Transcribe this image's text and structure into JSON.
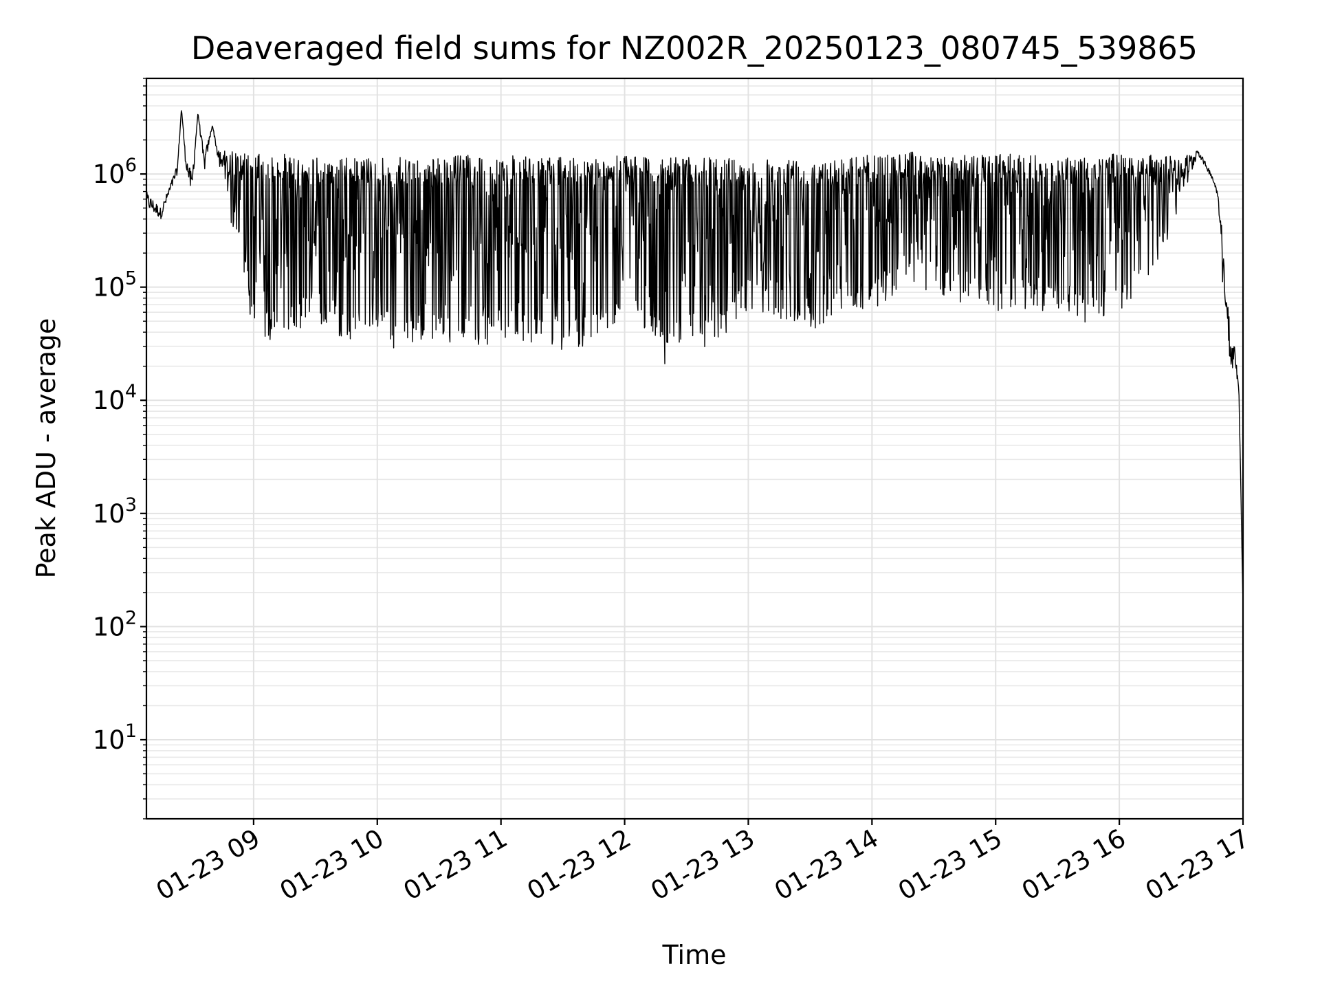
{
  "chart_data": {
    "type": "line",
    "title": "Deaveraged field sums for NZ002R_20250123_080745_539865",
    "xlabel": "Time",
    "ylabel": "Peak ADU - average",
    "y_scale": "log",
    "ylim": [
      2,
      7000000
    ],
    "xlim": [
      "2025-01-23 08:08",
      "2025-01-23 17:00"
    ],
    "grid": true,
    "legend": "none",
    "line_color": "#000000",
    "x_ticks": [
      "01-23 09",
      "01-23 10",
      "01-23 11",
      "01-23 12",
      "01-23 13",
      "01-23 14",
      "01-23 15",
      "01-23 16",
      "01-23 17"
    ],
    "y_ticks": [
      {
        "value": 10,
        "base": "10",
        "exp": "1"
      },
      {
        "value": 100,
        "base": "10",
        "exp": "2"
      },
      {
        "value": 1000,
        "base": "10",
        "exp": "3"
      },
      {
        "value": 10000,
        "base": "10",
        "exp": "4"
      },
      {
        "value": 100000,
        "base": "10",
        "exp": "5"
      },
      {
        "value": 1000000,
        "base": "10",
        "exp": "6"
      }
    ],
    "series": [
      {
        "x": [
          "2025-01-23 08:08",
          "2025-01-23 08:15",
          "2025-01-23 08:23",
          "2025-01-23 08:25",
          "2025-01-23 08:27",
          "2025-01-23 08:30",
          "2025-01-23 08:33",
          "2025-01-23 08:36",
          "2025-01-23 08:40",
          "2025-01-23 08:43",
          "2025-01-23 08:50",
          "2025-01-23 09:00",
          "2025-01-23 09:15",
          "2025-01-23 09:30",
          "2025-01-23 09:45",
          "2025-01-23 10:00",
          "2025-01-23 10:10",
          "2025-01-23 10:30",
          "2025-01-23 10:45",
          "2025-01-23 11:00",
          "2025-01-23 11:15",
          "2025-01-23 11:30",
          "2025-01-23 11:45",
          "2025-01-23 12:00",
          "2025-01-23 12:15",
          "2025-01-23 12:20",
          "2025-01-23 12:30",
          "2025-01-23 12:45",
          "2025-01-23 13:00",
          "2025-01-23 13:15",
          "2025-01-23 13:30",
          "2025-01-23 13:45",
          "2025-01-23 14:00",
          "2025-01-23 14:15",
          "2025-01-23 14:30",
          "2025-01-23 14:45",
          "2025-01-23 15:00",
          "2025-01-23 15:15",
          "2025-01-23 15:30",
          "2025-01-23 15:45",
          "2025-01-23 16:00",
          "2025-01-23 16:15",
          "2025-01-23 16:30",
          "2025-01-23 16:38",
          "2025-01-23 16:45",
          "2025-01-23 16:48",
          "2025-01-23 16:51",
          "2025-01-23 16:54",
          "2025-01-23 16:56",
          "2025-01-23 16:58",
          "2025-01-23 16:59",
          "2025-01-23 17:00"
        ],
        "y": [
          500000,
          400000,
          1000000,
          3800000,
          1200000,
          600000,
          3500000,
          1000000,
          2700000,
          1200000,
          300000,
          40000,
          30000,
          50000,
          33000,
          40000,
          25000,
          35000,
          27000,
          35000,
          30000,
          28000,
          30000,
          60000,
          30000,
          20000,
          30000,
          28000,
          60000,
          50000,
          35000,
          60000,
          60000,
          100000,
          90000,
          70000,
          60000,
          60000,
          60000,
          45000,
          60000,
          100000,
          500000,
          1500000,
          900000,
          600000,
          50000,
          15000,
          25000,
          10000,
          1500,
          150
        ],
        "y_upper": [
          700000,
          500000,
          1200000,
          3800000,
          1500000,
          1000000,
          3500000,
          1500000,
          2700000,
          1600000,
          1600000,
          1500000,
          1500000,
          1400000,
          1400000,
          1400000,
          1400000,
          1400000,
          1500000,
          1500000,
          1400000,
          1400000,
          1400000,
          1600000,
          1400000,
          1400000,
          1400000,
          1400000,
          1400000,
          1400000,
          1400000,
          1400000,
          1500000,
          1600000,
          1500000,
          1500000,
          1500000,
          1500000,
          1400000,
          1500000,
          1500000,
          1500000,
          1400000,
          1700000,
          1000000,
          700000,
          200000,
          35000,
          30000,
          15000,
          1500,
          150
        ]
      }
    ]
  }
}
